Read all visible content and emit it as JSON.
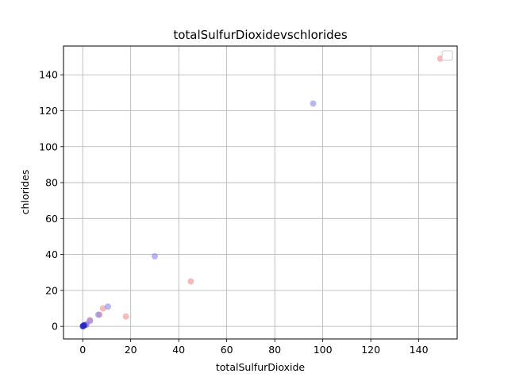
{
  "chart_data": {
    "type": "scatter",
    "title": "totalSulfurDioxidevschlorides",
    "xlabel": "totalSulfurDioxide",
    "ylabel": "chlorides",
    "xlim": [
      -8,
      156
    ],
    "ylim": [
      -7,
      156
    ],
    "xticks": [
      0,
      20,
      40,
      60,
      80,
      100,
      120,
      140
    ],
    "yticks": [
      0,
      20,
      40,
      60,
      80,
      100,
      120,
      140
    ],
    "grid": true,
    "legend": "top-right",
    "series": [
      {
        "color": "#f08080",
        "points": [
          [
            149,
            149
          ],
          [
            45,
            25
          ],
          [
            18,
            5.5
          ],
          [
            8.5,
            10
          ],
          [
            7,
            6.5
          ],
          [
            3,
            3.5
          ],
          [
            1.5,
            1
          ],
          [
            0.5,
            0.5
          ],
          [
            0.2,
            0.2
          ]
        ]
      },
      {
        "color": "#7b7bf0",
        "points": [
          [
            96,
            124
          ],
          [
            30,
            39
          ],
          [
            10.5,
            11
          ],
          [
            6.5,
            6.5
          ],
          [
            3,
            3
          ],
          [
            1.5,
            1
          ],
          [
            1,
            0.8
          ],
          [
            0.5,
            0.5
          ],
          [
            0.2,
            0.2
          ],
          [
            0,
            0
          ]
        ]
      },
      {
        "color": "#2020c0",
        "points": [
          [
            0.3,
            0.3
          ],
          [
            0.6,
            0.6
          ],
          [
            0.1,
            0.1
          ]
        ]
      }
    ]
  }
}
